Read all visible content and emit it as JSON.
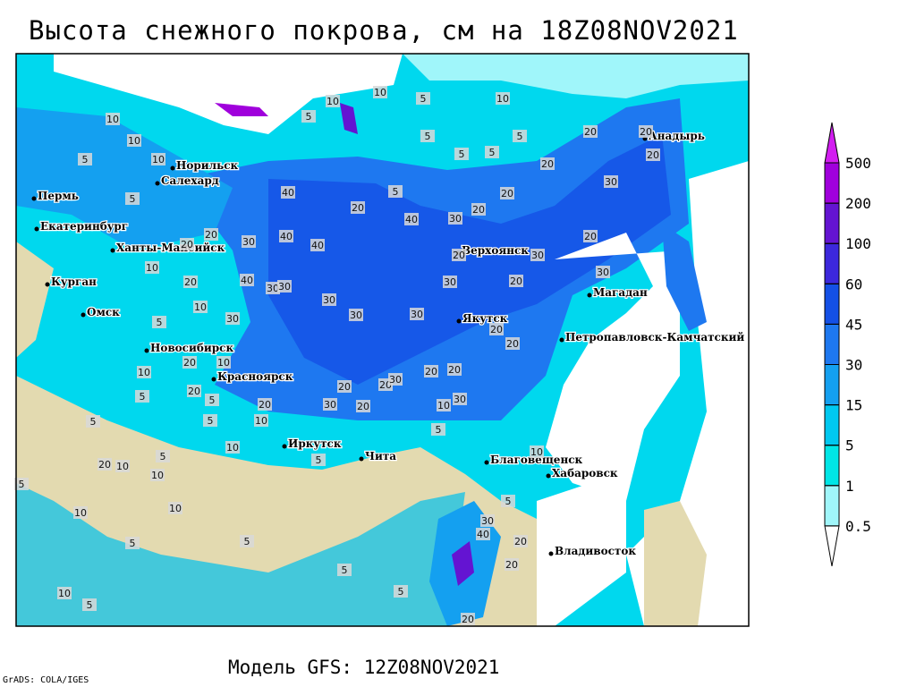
{
  "title": "Высота снежного покрова, см на 18Z08NOV2021",
  "model_line": "Модель GFS: 12Z08NOV2021",
  "credit": "GrADS: COLA/IGES",
  "cities": [
    "Норильск",
    "Салехард",
    "Пермь",
    "Екатеринбург",
    "Ханты-Мансийск",
    "Курган",
    "Омск",
    "Новосибирск",
    "Красноярск",
    "Иркутск",
    "Чита",
    "Благовещенск",
    "Хабаровск",
    "Владивосток",
    "Якутск",
    "Верхоянск",
    "Магадан",
    "Петропавловск-Камчатский",
    "Анадырь"
  ],
  "colorbar": {
    "levels": [
      0.5,
      1,
      5,
      15,
      30,
      45,
      60,
      100,
      200,
      500
    ],
    "colors": [
      "#ffffff",
      "#a0f6fa",
      "#00e6e6",
      "#00c8f0",
      "#14a0f0",
      "#1e78f0",
      "#1450e6",
      "#3c28dc",
      "#6414d2",
      "#a000dc",
      "#d21ef0"
    ]
  },
  "contour_labels": [
    10,
    5,
    10,
    10,
    5,
    10,
    10,
    5,
    5,
    20,
    20,
    5,
    10,
    5,
    5,
    20,
    20,
    40,
    5,
    5,
    20,
    20,
    30,
    40,
    20,
    30,
    20,
    40,
    40,
    30,
    20,
    20,
    20,
    30,
    10,
    20,
    40,
    30,
    30,
    30,
    20,
    30,
    30,
    30,
    30,
    10,
    30,
    5,
    20,
    20,
    10,
    20,
    20,
    20,
    20,
    20,
    30,
    10,
    5,
    20,
    10,
    30,
    20,
    30,
    20,
    5,
    5,
    10,
    5,
    10,
    10,
    5,
    5,
    20,
    10,
    10,
    5,
    10,
    10,
    30,
    40,
    20,
    5,
    20,
    5,
    10,
    5,
    5,
    20,
    5,
    5,
    5
  ]
}
